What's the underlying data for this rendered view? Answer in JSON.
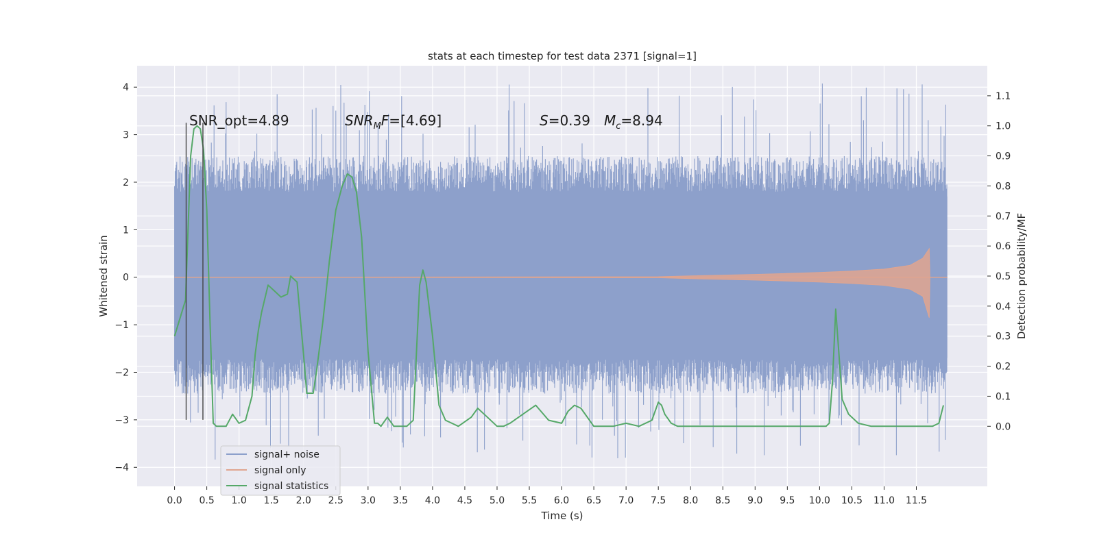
{
  "chart_data": {
    "type": "line",
    "title": "stats at each timestep for test data 2371 [signal=1]",
    "xlabel": "Time (s)",
    "ylabel": "Whitened strain",
    "ylabel_right": "Detection probability/MF",
    "xlim": [
      -0.58,
      12.6
    ],
    "ylim": [
      -4.4,
      4.45
    ],
    "ylim_right": [
      -0.2,
      1.2
    ],
    "x_ticks": [
      "0.0",
      "0.5",
      "1.0",
      "1.5",
      "2.0",
      "2.5",
      "3.0",
      "3.5",
      "4.0",
      "4.5",
      "5.0",
      "5.5",
      "6.0",
      "6.5",
      "7.0",
      "7.5",
      "8.0",
      "8.5",
      "9.0",
      "9.5",
      "10.0",
      "10.5",
      "11.0",
      "11.5"
    ],
    "y_ticks": [
      "4",
      "3",
      "2",
      "1",
      "0",
      "−1",
      "−2",
      "−3",
      "−4"
    ],
    "y_ticks_right": [
      "1.1",
      "1.0",
      "0.9",
      "0.8",
      "0.7",
      "0.6",
      "0.5",
      "0.4",
      "0.3",
      "0.2",
      "0.1",
      "0.0"
    ],
    "grid": true,
    "legend_position": "lower-left",
    "annotations": {
      "snr_opt": "SNR_opt=4.89",
      "snr_mf_label": "SNR",
      "snr_mf_sub": "M",
      "snr_mf_rest": "F=[4.69]",
      "s_label": "S",
      "s_value": "=0.39",
      "mc_label": "M",
      "mc_sub": "c",
      "mc_value": "=8.94"
    },
    "series": [
      {
        "name": "signal+ noise",
        "color": "#8da0cb",
        "x_range": [
          0.0,
          11.98
        ],
        "core_band": [
          -1.7,
          1.7
        ],
        "typical_extent": [
          -2.4,
          2.5
        ],
        "spike_max": 4.1,
        "spike_min": -3.85
      },
      {
        "name": "signal only",
        "color": "#e0a58f",
        "x_range": [
          0.0,
          11.98
        ],
        "envelope": [
          [
            0.0,
            0.0
          ],
          [
            7.5,
            0.01
          ],
          [
            8.0,
            0.03
          ],
          [
            9.0,
            0.06
          ],
          [
            10.0,
            0.1
          ],
          [
            10.5,
            0.13
          ],
          [
            11.0,
            0.17
          ],
          [
            11.4,
            0.25
          ],
          [
            11.6,
            0.4
          ],
          [
            11.7,
            0.6
          ],
          [
            11.71,
            0.0
          ],
          [
            11.98,
            0.0
          ]
        ]
      },
      {
        "name": "signal statistics",
        "color": "#55a868",
        "axis": "right",
        "x": [
          0.0,
          0.17,
          0.25,
          0.3,
          0.35,
          0.4,
          0.45,
          0.5,
          0.55,
          0.6,
          0.65,
          0.7,
          0.8,
          0.9,
          1.0,
          1.1,
          1.2,
          1.25,
          1.3,
          1.35,
          1.45,
          1.55,
          1.65,
          1.75,
          1.8,
          1.9,
          2.0,
          2.05,
          2.15,
          2.2,
          2.3,
          2.4,
          2.5,
          2.6,
          2.68,
          2.75,
          2.82,
          2.9,
          3.0,
          3.1,
          3.15,
          3.2,
          3.3,
          3.4,
          3.5,
          3.6,
          3.7,
          3.8,
          3.85,
          3.9,
          4.0,
          4.1,
          4.2,
          4.3,
          4.4,
          4.6,
          4.7,
          4.8,
          5.0,
          5.1,
          5.2,
          5.4,
          5.6,
          5.8,
          6.0,
          6.1,
          6.2,
          6.3,
          6.5,
          6.6,
          6.8,
          7.0,
          7.2,
          7.4,
          7.5,
          7.55,
          7.6,
          7.7,
          7.8,
          8.2,
          8.4,
          8.6,
          9.0,
          9.4,
          9.6,
          9.8,
          10.1,
          10.15,
          10.2,
          10.25,
          10.35,
          10.45,
          10.6,
          10.8,
          11.0,
          11.3,
          11.5,
          11.65,
          11.75,
          11.85,
          11.92
        ],
        "y": [
          0.3,
          0.42,
          0.9,
          0.99,
          1.0,
          0.99,
          0.92,
          0.72,
          0.35,
          0.01,
          0.0,
          0.0,
          0.0,
          0.04,
          0.01,
          0.02,
          0.1,
          0.24,
          0.32,
          0.38,
          0.47,
          0.45,
          0.43,
          0.44,
          0.5,
          0.48,
          0.24,
          0.11,
          0.11,
          0.18,
          0.35,
          0.55,
          0.72,
          0.8,
          0.84,
          0.83,
          0.78,
          0.63,
          0.25,
          0.01,
          0.01,
          0.0,
          0.03,
          0.0,
          0.0,
          0.0,
          0.02,
          0.47,
          0.52,
          0.48,
          0.3,
          0.07,
          0.02,
          0.01,
          0.0,
          0.03,
          0.06,
          0.04,
          0.0,
          0.0,
          0.01,
          0.04,
          0.07,
          0.02,
          0.01,
          0.05,
          0.07,
          0.06,
          0.0,
          0.0,
          0.0,
          0.01,
          0.0,
          0.02,
          0.08,
          0.07,
          0.04,
          0.01,
          0.0,
          0.0,
          0.0,
          0.0,
          0.0,
          0.0,
          0.0,
          0.0,
          0.0,
          0.01,
          0.15,
          0.39,
          0.09,
          0.04,
          0.01,
          0.0,
          0.0,
          0.0,
          0.0,
          0.0,
          0.0,
          0.01,
          0.07
        ]
      }
    ],
    "vertical_lines_x": [
      0.18,
      0.44
    ]
  }
}
